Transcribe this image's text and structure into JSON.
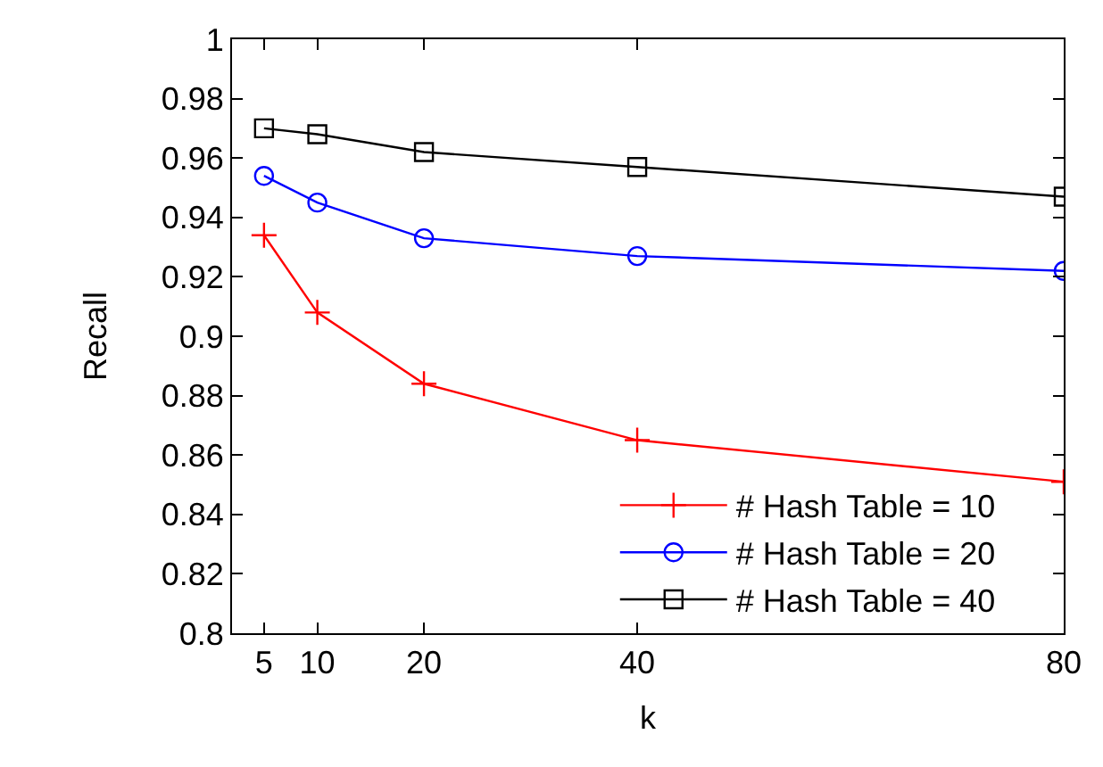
{
  "chart_data": {
    "type": "line",
    "xlabel": "k",
    "ylabel": "Recall",
    "x": [
      5,
      10,
      20,
      40,
      80
    ],
    "series": [
      {
        "name": "# Hash Table = 10",
        "color": "#ff0000",
        "marker": "cross",
        "values": [
          0.934,
          0.908,
          0.884,
          0.865,
          0.851
        ]
      },
      {
        "name": "# Hash Table = 20",
        "color": "#0000ff",
        "marker": "circle",
        "values": [
          0.954,
          0.945,
          0.933,
          0.927,
          0.922
        ]
      },
      {
        "name": "# Hash Table = 40",
        "color": "#000000",
        "marker": "square",
        "values": [
          0.97,
          0.968,
          0.962,
          0.957,
          0.947
        ]
      }
    ],
    "xlim": [
      2,
      80
    ],
    "xticks": [
      5,
      10,
      20,
      40,
      80
    ],
    "ylim": [
      0.8,
      1
    ],
    "yticks": [
      0.8,
      0.82,
      0.84,
      0.86,
      0.88,
      0.9,
      0.92,
      0.94,
      0.96,
      0.98,
      1
    ],
    "legend": "bottom right",
    "line_style": "solid"
  }
}
